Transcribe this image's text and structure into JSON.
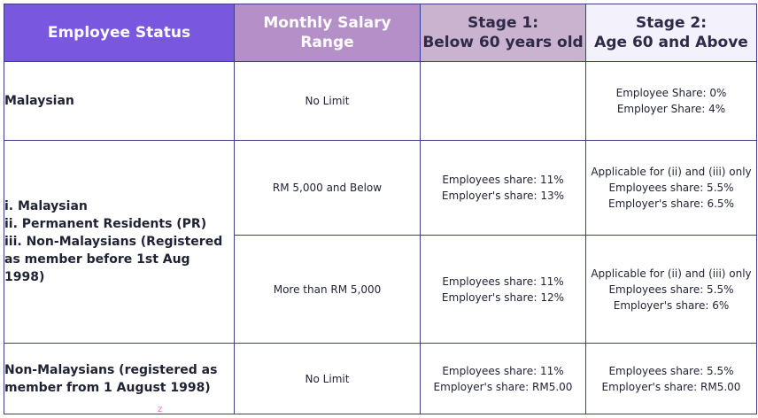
{
  "headers": {
    "status": "Employee Status",
    "salary": "Monthly Salary Range",
    "stage1_line1": "Stage 1:",
    "stage1_line2": "Below 60 years old",
    "stage2_line1": "Stage 2:",
    "stage2_line2": "Age 60 and Above"
  },
  "rows": {
    "malaysian": {
      "status": "Malaysian",
      "salary": "No Limit",
      "stage1": "",
      "stage2_line1": "Employee Share: 0%",
      "stage2_line2": "Employer Share: 4%"
    },
    "group": {
      "status_line1": "i. Malaysian",
      "status_line2": "ii. Permanent Residents (PR)",
      "status_line3": "iii. Non-Malaysians (Registered",
      "status_line4": "as member before 1st Aug 1998)",
      "sub1": {
        "salary": "RM 5,000 and Below",
        "stage1_line1": "Employees share: 11%",
        "stage1_line2": "Employer's share: 13%",
        "stage2_line1": "Applicable for (ii) and (iii) only",
        "stage2_line2": "Employees share: 5.5%",
        "stage2_line3": "Employer's share: 6.5%"
      },
      "sub2": {
        "salary": "More than RM 5,000",
        "stage1_line1": "Employees share: 11%",
        "stage1_line2": "Employer's share: 12%",
        "stage2_line1": "Applicable for (ii) and (iii) only",
        "stage2_line2": "Employees share: 5.5%",
        "stage2_line3": "Employer's share: 6%"
      }
    },
    "nonmalaysian": {
      "status_line1": "Non-Malaysians (registered as",
      "status_line2": "member from 1 August 1998)",
      "salary": "No Limit",
      "stage1_line1": "Employees share: 11%",
      "stage1_line2": "Employer's share: RM5.00",
      "stage2_line1": "Employees share: 5.5%",
      "stage2_line2": "Employer's share: RM5.00"
    }
  },
  "stray_mark": "z",
  "colors": {
    "header_status": "#7957de",
    "header_salary": "#b590c8",
    "header_stage1": "#c9b3cf",
    "header_stage2": "#f3f1fb",
    "border": "#3b3f86"
  }
}
